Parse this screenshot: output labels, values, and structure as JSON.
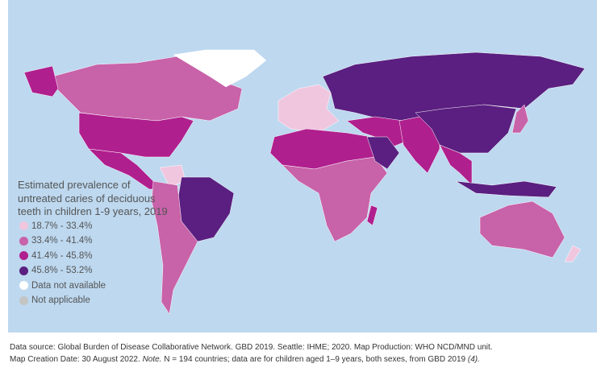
{
  "legend": {
    "title": "Estimated prevalence of untreated caries of deciduous teeth in children 1-9 years, 2019",
    "classes": [
      {
        "label": "18.7% - 33.4%",
        "color": "#f0c6df"
      },
      {
        "label": "33.4% - 41.4%",
        "color": "#c862a9"
      },
      {
        "label": "41.4% - 45.8%",
        "color": "#b01f8e"
      },
      {
        "label": "45.8% - 53.2%",
        "color": "#5a1f80"
      },
      {
        "label": "Data not available",
        "color": "#ffffff"
      },
      {
        "label": "Not applicable",
        "color": "#c4c4c4"
      }
    ]
  },
  "colors": {
    "ocean": "#bdd8ef"
  },
  "regions": [
    {
      "name": "Canada",
      "class": 1
    },
    {
      "name": "Alaska",
      "class": 2
    },
    {
      "name": "United States",
      "class": 2
    },
    {
      "name": "Mexico & Central America",
      "class": 2
    },
    {
      "name": "Greenland",
      "class": 4
    },
    {
      "name": "Colombia",
      "class": 0
    },
    {
      "name": "Brazil",
      "class": 3
    },
    {
      "name": "Southern South America",
      "class": 1
    },
    {
      "name": "Western Europe",
      "class": 0
    },
    {
      "name": "Russia & Central Asia",
      "class": 3
    },
    {
      "name": "North Africa",
      "class": 2
    },
    {
      "name": "Sub-Saharan Africa",
      "class": 1
    },
    {
      "name": "Middle East",
      "class": 2
    },
    {
      "name": "Saudi Arabia",
      "class": 3
    },
    {
      "name": "South Asia",
      "class": 2
    },
    {
      "name": "China & Mongolia",
      "class": 3
    },
    {
      "name": "Southeast Asia",
      "class": 2
    },
    {
      "name": "Indonesia",
      "class": 3
    },
    {
      "name": "Australia",
      "class": 1
    },
    {
      "name": "New Zealand",
      "class": 0
    },
    {
      "name": "Madagascar",
      "class": 2
    },
    {
      "name": "Japan",
      "class": 1
    }
  ],
  "footer": {
    "line1": "Data source: Global Burden of Disease Collaborative Network. GBD 2019. Seattle: IHME; 2020.  Map Production: WHO NCD/MND unit.",
    "line2a": "Map Creation Date: 30 August 2022.  ",
    "note": "Note.",
    "line2b": " N = 194 countries; data are for children aged 1–9 years, both sexes, from GBD 2019 ",
    "ref": "(4)."
  }
}
